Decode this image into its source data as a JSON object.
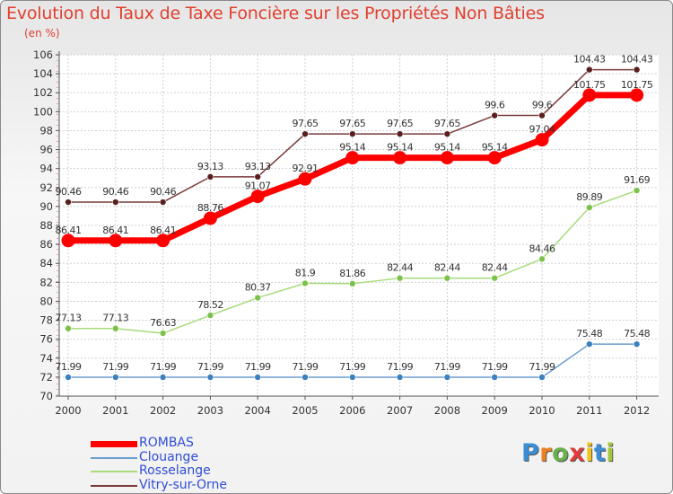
{
  "header": {
    "title": "Evolution du Taux de Taxe Foncière sur les Propriétés Non Bâties",
    "unit": "(en %)"
  },
  "chart_data": {
    "type": "line",
    "x": [
      "2000",
      "2001",
      "2002",
      "2003",
      "2004",
      "2005",
      "2006",
      "2007",
      "2008",
      "2009",
      "2010",
      "2011",
      "2012"
    ],
    "ylim": [
      70,
      106
    ],
    "ytick_step": 2,
    "grid": true,
    "legend_position": "bottom-left",
    "series": [
      {
        "name": "ROMBAS",
        "color": "#ff0000",
        "marker_color": "#ff0000",
        "width": 7,
        "values": [
          86.41,
          86.41,
          86.41,
          88.76,
          91.07,
          92.91,
          95.14,
          95.14,
          95.14,
          95.14,
          97.04,
          101.75,
          101.75
        ],
        "labels": [
          "86.41",
          "86.41",
          "86.41",
          "88.76",
          "91.07",
          "92.91",
          "95.14",
          "95.14",
          "95.14",
          "95.14",
          "97.04",
          "101.75",
          "101.75"
        ]
      },
      {
        "name": "Clouange",
        "color": "#6b9fcf",
        "marker_color": "#3c80c0",
        "width": 1.5,
        "values": [
          71.99,
          71.99,
          71.99,
          71.99,
          71.99,
          71.99,
          71.99,
          71.99,
          71.99,
          71.99,
          71.99,
          75.48,
          75.48
        ],
        "labels": [
          "71.99",
          "71.99",
          "71.99",
          "71.99",
          "71.99",
          "71.99",
          "71.99",
          "71.99",
          "71.99",
          "71.99",
          "71.99",
          "75.48",
          "75.48"
        ]
      },
      {
        "name": "Rosselange",
        "color": "#a6dc7a",
        "marker_color": "#7cc24a",
        "width": 1.5,
        "values": [
          77.13,
          77.13,
          76.63,
          78.52,
          80.37,
          81.9,
          81.86,
          82.44,
          82.44,
          82.44,
          84.46,
          89.89,
          91.69
        ],
        "labels": [
          "77.13",
          "77.13",
          "76.63",
          "78.52",
          "80.37",
          "81.9",
          "81.86",
          "82.44",
          "82.44",
          "82.44",
          "84.46",
          "89.89",
          "91.69"
        ]
      },
      {
        "name": "Vitry-sur-Orne",
        "color": "#7a3a3a",
        "marker_color": "#5a1e1e",
        "width": 1.5,
        "values": [
          90.46,
          90.46,
          90.46,
          93.13,
          93.13,
          97.65,
          97.65,
          97.65,
          97.65,
          99.6,
          99.6,
          104.43,
          104.43
        ],
        "labels": [
          "90.46",
          "90.46",
          "90.46",
          "93.13",
          "93.13",
          "97.65",
          "97.65",
          "97.65",
          "97.65",
          "99.6",
          "99.6",
          "104.43",
          "104.43"
        ]
      }
    ]
  },
  "logo": {
    "letters": [
      "P",
      "r",
      "o",
      "x",
      "i",
      "t",
      "i"
    ],
    "colors": [
      "#3b8ed4",
      "#f07f1e",
      "#6ab04c",
      "#e23b3b",
      "#f2c31a",
      "#3b8ed4",
      "#a3c63a"
    ]
  }
}
